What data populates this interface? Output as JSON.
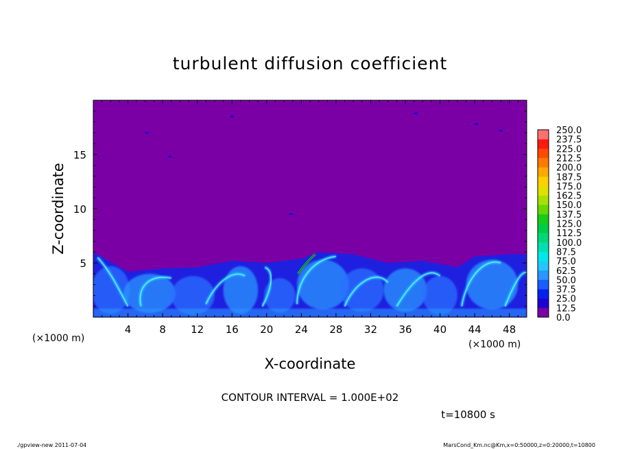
{
  "chart_data": {
    "type": "heatmap",
    "title": "turbulent diffusion coefficient",
    "xlabel": "X-coordinate",
    "ylabel": "Z-coordinate",
    "x_unit": "(×1000 m)",
    "y_unit": "(×1000 m)",
    "xlim": [
      0,
      50
    ],
    "ylim": [
      0,
      20
    ],
    "x_ticks": [
      4,
      8,
      12,
      16,
      20,
      24,
      28,
      32,
      36,
      40,
      44,
      48
    ],
    "y_ticks": [
      5,
      10,
      15
    ],
    "colorbar": {
      "levels": [
        0.0,
        12.5,
        25.0,
        37.5,
        50.0,
        62.5,
        75.0,
        87.5,
        100.0,
        112.5,
        125.0,
        137.5,
        150.0,
        162.5,
        175.0,
        187.5,
        200.0,
        212.5,
        225.0,
        237.5,
        250.0
      ],
      "labels": [
        "0.0",
        "12.5",
        "25.0",
        "37.5",
        "50.0",
        "62.5",
        "75.0",
        "87.5",
        "100.0",
        "112.5",
        "125.0",
        "137.5",
        "150.0",
        "162.5",
        "175.0",
        "187.5",
        "200.0",
        "212.5",
        "225.0",
        "237.5",
        "250.0"
      ],
      "colors": [
        "#7a00a6",
        "#1f00d0",
        "#0022ee",
        "#1a5cff",
        "#2a96ff",
        "#20c8ff",
        "#00e8e8",
        "#00e0b0",
        "#00d878",
        "#00cc44",
        "#18cc18",
        "#66d800",
        "#a8e000",
        "#e0e000",
        "#ffd000",
        "#ffa800",
        "#ff7a00",
        "#ff4a00",
        "#ff1a10",
        "#ff7070"
      ]
    },
    "background_value": 0.0,
    "boundary_layer_top_approx": [
      [
        0,
        6.0
      ],
      [
        4,
        4.2
      ],
      [
        8,
        4.5
      ],
      [
        12,
        4.6
      ],
      [
        16,
        5.2
      ],
      [
        20,
        5.0
      ],
      [
        24,
        5.4
      ],
      [
        26,
        6.0
      ],
      [
        30,
        5.8
      ],
      [
        34,
        5.0
      ],
      [
        38,
        5.2
      ],
      [
        42,
        4.6
      ],
      [
        44,
        5.6
      ],
      [
        48,
        5.8
      ],
      [
        50,
        5.8
      ]
    ],
    "contour_interval": "CONTOUR INTERVAL = 1.000E+02",
    "time_label": "t=10800 s"
  },
  "footer": {
    "left": "./gpview-new   2011-07-04",
    "right": "MarsCond_Km.nc@Km,x=0:50000,z=0:20000,t=10800"
  }
}
